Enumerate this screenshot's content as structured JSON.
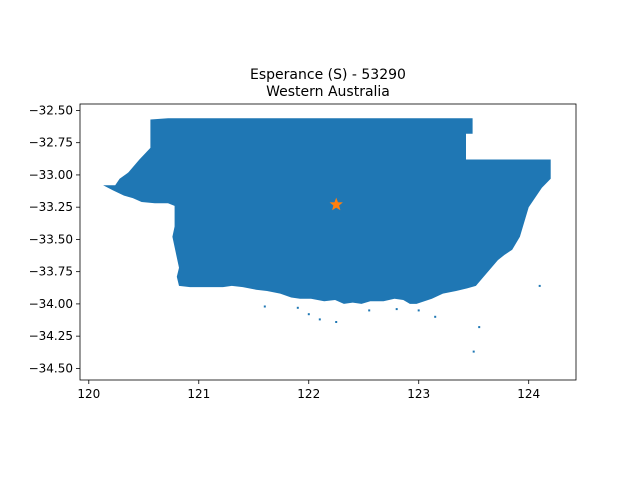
{
  "chart_data": {
    "type": "map",
    "title_line1": "Esperance (S) - 53290",
    "title_line2": "Western Australia",
    "xlim": [
      119.92,
      124.43
    ],
    "ylim": [
      -34.59,
      -32.45
    ],
    "x_ticks": [
      120,
      121,
      122,
      123,
      124
    ],
    "y_ticks": [
      -32.5,
      -32.75,
      -33.0,
      -33.25,
      -33.5,
      -33.75,
      -34.0,
      -34.25,
      -34.5
    ],
    "x_tick_labels": [
      "120",
      "121",
      "122",
      "123",
      "124"
    ],
    "y_tick_labels": [
      "−32.50",
      "−32.75",
      "−33.00",
      "−33.25",
      "−33.50",
      "−33.75",
      "−34.00",
      "−34.25",
      "−34.50"
    ],
    "region_color": "#1f77b4",
    "marker": {
      "x": 122.25,
      "y": -33.23,
      "shape": "star",
      "color": "#ff7f0e"
    },
    "region_outline": [
      [
        120.56,
        -32.57
      ],
      [
        120.72,
        -32.56
      ],
      [
        122.0,
        -32.56
      ],
      [
        123.49,
        -32.56
      ],
      [
        123.49,
        -32.68
      ],
      [
        123.43,
        -32.68
      ],
      [
        123.43,
        -32.88
      ],
      [
        124.2,
        -32.88
      ],
      [
        124.2,
        -33.03
      ],
      [
        124.12,
        -33.1
      ],
      [
        124.0,
        -33.25
      ],
      [
        123.92,
        -33.48
      ],
      [
        123.85,
        -33.58
      ],
      [
        123.78,
        -33.62
      ],
      [
        123.72,
        -33.66
      ],
      [
        123.65,
        -33.73
      ],
      [
        123.58,
        -33.8
      ],
      [
        123.52,
        -33.86
      ],
      [
        123.44,
        -33.88
      ],
      [
        123.34,
        -33.9
      ],
      [
        123.22,
        -33.92
      ],
      [
        123.12,
        -33.96
      ],
      [
        122.98,
        -34.0
      ],
      [
        122.92,
        -34.0
      ],
      [
        122.86,
        -33.97
      ],
      [
        122.78,
        -33.96
      ],
      [
        122.68,
        -33.98
      ],
      [
        122.56,
        -33.98
      ],
      [
        122.48,
        -34.0
      ],
      [
        122.4,
        -33.99
      ],
      [
        122.32,
        -34.0
      ],
      [
        122.24,
        -33.97
      ],
      [
        122.14,
        -33.98
      ],
      [
        122.02,
        -33.96
      ],
      [
        121.92,
        -33.96
      ],
      [
        121.84,
        -33.95
      ],
      [
        121.74,
        -33.92
      ],
      [
        121.62,
        -33.9
      ],
      [
        121.52,
        -33.89
      ],
      [
        121.4,
        -33.87
      ],
      [
        121.3,
        -33.86
      ],
      [
        121.22,
        -33.87
      ],
      [
        121.12,
        -33.87
      ],
      [
        121.02,
        -33.87
      ],
      [
        120.92,
        -33.87
      ],
      [
        120.82,
        -33.86
      ],
      [
        120.8,
        -33.79
      ],
      [
        120.82,
        -33.72
      ],
      [
        120.79,
        -33.6
      ],
      [
        120.76,
        -33.48
      ],
      [
        120.78,
        -33.4
      ],
      [
        120.78,
        -33.24
      ],
      [
        120.72,
        -33.22
      ],
      [
        120.6,
        -33.22
      ],
      [
        120.48,
        -33.21
      ],
      [
        120.4,
        -33.18
      ],
      [
        120.32,
        -33.16
      ],
      [
        120.22,
        -33.12
      ],
      [
        120.13,
        -33.08
      ],
      [
        120.24,
        -33.08
      ],
      [
        120.28,
        -33.03
      ],
      [
        120.36,
        -32.98
      ],
      [
        120.46,
        -32.88
      ],
      [
        120.56,
        -32.79
      ]
    ]
  }
}
